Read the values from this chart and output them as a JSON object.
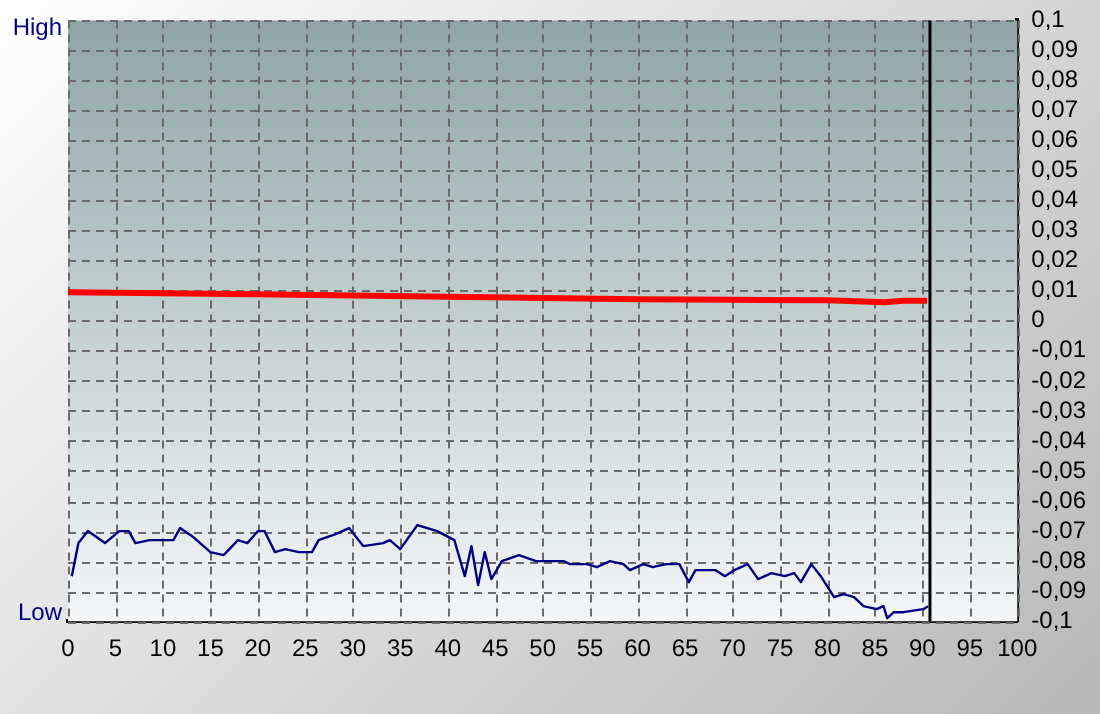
{
  "chart_data": {
    "type": "line",
    "xlim": [
      0,
      100
    ],
    "xticks": [
      0,
      5,
      10,
      15,
      20,
      25,
      30,
      35,
      40,
      45,
      50,
      55,
      60,
      65,
      70,
      75,
      80,
      85,
      90,
      95,
      100
    ],
    "ylim": [
      -0.1,
      0.1
    ],
    "yticks": [
      {
        "value": 0.1,
        "label": "0,1"
      },
      {
        "value": 0.09,
        "label": "0,09"
      },
      {
        "value": 0.08,
        "label": "0,08"
      },
      {
        "value": 0.07,
        "label": "0,07"
      },
      {
        "value": 0.06,
        "label": "0,06"
      },
      {
        "value": 0.05,
        "label": "0,05"
      },
      {
        "value": 0.04,
        "label": "0,04"
      },
      {
        "value": 0.03,
        "label": "0,03"
      },
      {
        "value": 0.02,
        "label": "0,02"
      },
      {
        "value": 0.01,
        "label": "0,01"
      },
      {
        "value": 0,
        "label": "0"
      },
      {
        "value": -0.01,
        "label": "-0,01"
      },
      {
        "value": -0.02,
        "label": "-0,02"
      },
      {
        "value": -0.03,
        "label": "-0,03"
      },
      {
        "value": -0.04,
        "label": "-0,04"
      },
      {
        "value": -0.05,
        "label": "-0,05"
      },
      {
        "value": -0.06,
        "label": "-0,06"
      },
      {
        "value": -0.07,
        "label": "-0,07"
      },
      {
        "value": -0.08,
        "label": "-0,08"
      },
      {
        "value": -0.09,
        "label": "-0,09"
      },
      {
        "value": -0.1,
        "label": "-0,1"
      }
    ],
    "annotations": [
      "High",
      "Low"
    ],
    "grid": true,
    "legend": false,
    "marker": "none",
    "line_style": "solid",
    "ref_lines": [
      {
        "axis": "x",
        "value": 90.8,
        "color": "#000000"
      }
    ],
    "series": [
      {
        "color": "#ff0000",
        "x": [
          0,
          10,
          20,
          30,
          40,
          50,
          60,
          70,
          80,
          86,
          88,
          90.5
        ],
        "values": [
          0.0095,
          0.0092,
          0.0088,
          0.0084,
          0.008,
          0.0076,
          0.0072,
          0.007,
          0.0068,
          0.0062,
          0.0067,
          0.0067
        ]
      },
      {
        "color": "#000080",
        "x": [
          0.4,
          1.1,
          2.1,
          3.9,
          5.4,
          6.4,
          7.1,
          8.6,
          10,
          11.1,
          11.8,
          13.2,
          15,
          16.4,
          17.9,
          18.9,
          20,
          20.7,
          21.8,
          22.9,
          24.3,
          25.7,
          26.4,
          28.2,
          29.6,
          31.1,
          33.2,
          33.9,
          35,
          36.8,
          38.9,
          40.7,
          41.8,
          42.5,
          43.2,
          43.9,
          44.6,
          45.7,
          47.5,
          49.3,
          51.4,
          52.2,
          52.9,
          54.7,
          55.7,
          57.1,
          58.5,
          59.2,
          60.6,
          61.6,
          63,
          64.4,
          65.4,
          66.1,
          68.2,
          69.2,
          70.2,
          71.6,
          72.7,
          74.1,
          75.5,
          76.5,
          77.2,
          78.3,
          79.3,
          80.7,
          81.7,
          82.8,
          83.8,
          85.2,
          85.9,
          86.3,
          87,
          88,
          90.1,
          90.6
        ],
        "values": [
          -0.085,
          -0.074,
          -0.07,
          -0.074,
          -0.07,
          -0.07,
          -0.074,
          -0.073,
          -0.073,
          -0.073,
          -0.069,
          -0.072,
          -0.077,
          -0.078,
          -0.073,
          -0.074,
          -0.07,
          -0.07,
          -0.077,
          -0.076,
          -0.077,
          -0.077,
          -0.073,
          -0.071,
          -0.069,
          -0.075,
          -0.074,
          -0.073,
          -0.076,
          -0.068,
          -0.07,
          -0.073,
          -0.085,
          -0.075,
          -0.088,
          -0.077,
          -0.086,
          -0.08,
          -0.078,
          -0.08,
          -0.08,
          -0.08,
          -0.081,
          -0.081,
          -0.082,
          -0.08,
          -0.081,
          -0.083,
          -0.081,
          -0.082,
          -0.081,
          -0.081,
          -0.087,
          -0.083,
          -0.083,
          -0.085,
          -0.083,
          -0.081,
          -0.086,
          -0.084,
          -0.085,
          -0.084,
          -0.087,
          -0.081,
          -0.085,
          -0.092,
          -0.091,
          -0.092,
          -0.095,
          -0.096,
          -0.095,
          -0.099,
          -0.097,
          -0.097,
          -0.096,
          -0.095
        ]
      }
    ]
  }
}
